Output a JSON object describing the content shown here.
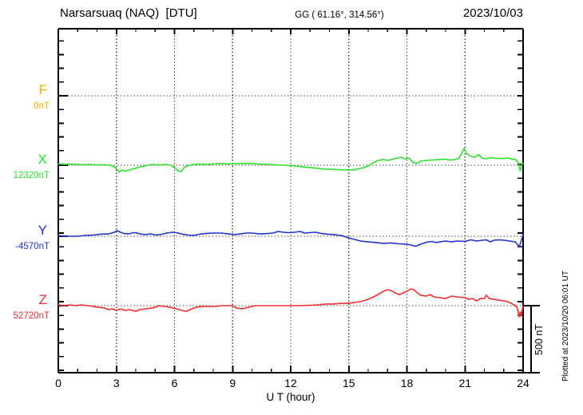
{
  "header": {
    "station": "Narsarsuaq (NAQ)  [DTU]",
    "coordinates": "GG ( 61.16°, 314.56°)",
    "date": "2023/10/03"
  },
  "xaxis": {
    "label": "U T (hour)",
    "tick_labels": [
      "0",
      "3",
      "6",
      "9",
      "12",
      "15",
      "18",
      "21",
      "24"
    ]
  },
  "scalebar": {
    "label": "500 nT",
    "span_nT": 500
  },
  "footer": {
    "plotted_at": "Plotted at 2023/10/20 06:01 UT"
  },
  "chart_data": {
    "type": "line",
    "title": "Narsarsuaq (NAQ) [DTU] magnetogram",
    "date": "2023/10/03",
    "xlabel": "U T (hour)",
    "xlim": [
      0,
      24
    ],
    "xticks": [
      0,
      3,
      6,
      9,
      12,
      15,
      18,
      21,
      24
    ],
    "grid": "dotted vertical line every 3 h; dotted horizontal baseline per channel",
    "y_scale": "100 nT per minor tick, scale bar = 500 nT",
    "legend_position": "left margin channel labels",
    "series": [
      {
        "name": "F",
        "baseline_label": "0nT",
        "baseline_nT": 0,
        "unit": "nT",
        "color": "#ffae00",
        "points": []
      },
      {
        "name": "X",
        "baseline_label": "12320nT",
        "baseline_nT": 12320,
        "unit": "nT",
        "color": "#2ce02c",
        "points": [
          [
            0,
            9
          ],
          [
            0.3,
            6
          ],
          [
            0.6,
            9
          ],
          [
            1,
            6
          ],
          [
            1.3,
            3
          ],
          [
            1.6,
            6
          ],
          [
            2,
            3
          ],
          [
            2.4,
            3
          ],
          [
            2.7,
            0
          ],
          [
            2.9,
            -12
          ],
          [
            3.05,
            -35
          ],
          [
            3.15,
            -52
          ],
          [
            3.3,
            -35
          ],
          [
            3.45,
            -44
          ],
          [
            3.6,
            -38
          ],
          [
            3.8,
            -29
          ],
          [
            4,
            -23
          ],
          [
            4.2,
            -12
          ],
          [
            4.5,
            -6
          ],
          [
            4.7,
            3
          ],
          [
            5,
            6
          ],
          [
            5.2,
            0
          ],
          [
            5.5,
            6
          ],
          [
            5.8,
            0
          ],
          [
            6.05,
            -23
          ],
          [
            6.2,
            -41
          ],
          [
            6.35,
            -47
          ],
          [
            6.5,
            -17
          ],
          [
            6.7,
            -3
          ],
          [
            7,
            6
          ],
          [
            7.3,
            9
          ],
          [
            7.6,
            6
          ],
          [
            8,
            9
          ],
          [
            8.4,
            12
          ],
          [
            8.8,
            9
          ],
          [
            9.2,
            12
          ],
          [
            9.6,
            12
          ],
          [
            10,
            12
          ],
          [
            10.4,
            9
          ],
          [
            10.8,
            6
          ],
          [
            11.2,
            3
          ],
          [
            11.6,
            0
          ],
          [
            12,
            -3
          ],
          [
            12.4,
            -9
          ],
          [
            12.8,
            -15
          ],
          [
            13.2,
            -20
          ],
          [
            13.6,
            -26
          ],
          [
            14,
            -29
          ],
          [
            14.4,
            -32
          ],
          [
            14.7,
            -35
          ],
          [
            15,
            -32
          ],
          [
            15.2,
            -35
          ],
          [
            15.5,
            -26
          ],
          [
            15.8,
            -17
          ],
          [
            16,
            -6
          ],
          [
            16.2,
            12
          ],
          [
            16.5,
            35
          ],
          [
            16.8,
            41
          ],
          [
            17,
            35
          ],
          [
            17.2,
            41
          ],
          [
            17.5,
            52
          ],
          [
            17.7,
            58
          ],
          [
            17.9,
            46
          ],
          [
            18.1,
            52
          ],
          [
            18.3,
            23
          ],
          [
            18.5,
            12
          ],
          [
            18.7,
            29
          ],
          [
            19,
            35
          ],
          [
            19.3,
            38
          ],
          [
            19.6,
            41
          ],
          [
            20,
            44
          ],
          [
            20.2,
            38
          ],
          [
            20.5,
            41
          ],
          [
            20.7,
            52
          ],
          [
            20.85,
            93
          ],
          [
            20.95,
            122
          ],
          [
            21.1,
            81
          ],
          [
            21.3,
            64
          ],
          [
            21.5,
            58
          ],
          [
            21.7,
            76
          ],
          [
            21.9,
            52
          ],
          [
            22.1,
            46
          ],
          [
            22.3,
            55
          ],
          [
            22.5,
            52
          ],
          [
            22.7,
            49
          ],
          [
            23,
            49
          ],
          [
            23.2,
            52
          ],
          [
            23.4,
            46
          ],
          [
            23.6,
            41
          ],
          [
            23.75,
            23
          ],
          [
            23.85,
            -41
          ],
          [
            23.95,
            17
          ],
          [
            24,
            12
          ]
        ]
      },
      {
        "name": "Y",
        "baseline_label": "-4570nT",
        "baseline_nT": -4570,
        "unit": "nT",
        "color": "#2233cc",
        "points": [
          [
            0,
            6
          ],
          [
            0.3,
            0
          ],
          [
            0.7,
            0
          ],
          [
            1,
            0
          ],
          [
            1.4,
            6
          ],
          [
            1.8,
            9
          ],
          [
            2.2,
            15
          ],
          [
            2.6,
            17
          ],
          [
            2.9,
            29
          ],
          [
            3.05,
            41
          ],
          [
            3.2,
            29
          ],
          [
            3.4,
            20
          ],
          [
            3.6,
            17
          ],
          [
            3.8,
            23
          ],
          [
            4,
            26
          ],
          [
            4.2,
            17
          ],
          [
            4.5,
            12
          ],
          [
            4.8,
            17
          ],
          [
            5,
            9
          ],
          [
            5.3,
            12
          ],
          [
            5.6,
            23
          ],
          [
            5.9,
            29
          ],
          [
            6.1,
            26
          ],
          [
            6.4,
            15
          ],
          [
            6.7,
            9
          ],
          [
            7,
            6
          ],
          [
            7.3,
            15
          ],
          [
            7.6,
            20
          ],
          [
            8,
            23
          ],
          [
            8.4,
            23
          ],
          [
            8.8,
            17
          ],
          [
            9.1,
            12
          ],
          [
            9.4,
            17
          ],
          [
            9.7,
            23
          ],
          [
            10,
            23
          ],
          [
            10.4,
            17
          ],
          [
            10.8,
            20
          ],
          [
            11.1,
            23
          ],
          [
            11.35,
            35
          ],
          [
            11.6,
            29
          ],
          [
            11.9,
            26
          ],
          [
            12.2,
            29
          ],
          [
            12.5,
            35
          ],
          [
            12.7,
            23
          ],
          [
            13,
            26
          ],
          [
            13.3,
            29
          ],
          [
            13.6,
            20
          ],
          [
            13.9,
            15
          ],
          [
            14.2,
            12
          ],
          [
            14.6,
            6
          ],
          [
            15,
            -12
          ],
          [
            15.3,
            -23
          ],
          [
            15.6,
            -35
          ],
          [
            16,
            -41
          ],
          [
            16.4,
            -46
          ],
          [
            16.8,
            -52
          ],
          [
            17.2,
            -49
          ],
          [
            17.6,
            -55
          ],
          [
            18,
            -58
          ],
          [
            18.2,
            -64
          ],
          [
            18.45,
            -73
          ],
          [
            18.7,
            -58
          ],
          [
            19,
            -44
          ],
          [
            19.3,
            -38
          ],
          [
            19.5,
            -46
          ],
          [
            19.7,
            -41
          ],
          [
            20,
            -35
          ],
          [
            20.3,
            -41
          ],
          [
            20.6,
            -35
          ],
          [
            21,
            -38
          ],
          [
            21.3,
            -26
          ],
          [
            21.6,
            -35
          ],
          [
            21.9,
            -29
          ],
          [
            22.1,
            -26
          ],
          [
            22.3,
            -41
          ],
          [
            22.5,
            -29
          ],
          [
            22.8,
            -26
          ],
          [
            23,
            -29
          ],
          [
            23.3,
            -35
          ],
          [
            23.6,
            -41
          ],
          [
            23.8,
            -76
          ],
          [
            23.9,
            -35
          ],
          [
            24,
            12
          ]
        ]
      },
      {
        "name": "Z",
        "baseline_label": "52720nT",
        "baseline_nT": 52720,
        "unit": "nT",
        "color": "#ee2e2e",
        "points": [
          [
            0,
            6
          ],
          [
            0.3,
            0
          ],
          [
            0.6,
            6
          ],
          [
            0.9,
            0
          ],
          [
            1.2,
            6
          ],
          [
            1.5,
            0
          ],
          [
            1.8,
            -6
          ],
          [
            2.1,
            -12
          ],
          [
            2.4,
            -17
          ],
          [
            2.6,
            -29
          ],
          [
            2.8,
            -23
          ],
          [
            3,
            -35
          ],
          [
            3.2,
            -23
          ],
          [
            3.45,
            -35
          ],
          [
            3.7,
            -29
          ],
          [
            4,
            -41
          ],
          [
            4.2,
            -29
          ],
          [
            4.5,
            -23
          ],
          [
            4.8,
            -17
          ],
          [
            5,
            -12
          ],
          [
            5.2,
            0
          ],
          [
            5.5,
            -6
          ],
          [
            5.8,
            -12
          ],
          [
            6.1,
            -23
          ],
          [
            6.4,
            -35
          ],
          [
            6.6,
            -41
          ],
          [
            6.8,
            -29
          ],
          [
            7.1,
            -12
          ],
          [
            7.4,
            -6
          ],
          [
            7.7,
            -6
          ],
          [
            8,
            -6
          ],
          [
            8.5,
            0
          ],
          [
            9,
            0
          ],
          [
            9.2,
            -17
          ],
          [
            9.5,
            -23
          ],
          [
            9.8,
            -12
          ],
          [
            10.2,
            0
          ],
          [
            10.6,
            0
          ],
          [
            11,
            0
          ],
          [
            11.5,
            0
          ],
          [
            12,
            0
          ],
          [
            12.5,
            0
          ],
          [
            13,
            3
          ],
          [
            13.4,
            6
          ],
          [
            13.8,
            12
          ],
          [
            14.2,
            12
          ],
          [
            14.6,
            17
          ],
          [
            15,
            17
          ],
          [
            15.3,
            23
          ],
          [
            15.6,
            29
          ],
          [
            15.9,
            41
          ],
          [
            16.2,
            58
          ],
          [
            16.5,
            81
          ],
          [
            16.8,
            105
          ],
          [
            17,
            116
          ],
          [
            17.2,
            110
          ],
          [
            17.4,
            93
          ],
          [
            17.6,
            81
          ],
          [
            17.8,
            93
          ],
          [
            18,
            105
          ],
          [
            18.2,
            122
          ],
          [
            18.35,
            116
          ],
          [
            18.5,
            99
          ],
          [
            18.7,
            76
          ],
          [
            19,
            70
          ],
          [
            19.2,
            81
          ],
          [
            19.4,
            64
          ],
          [
            19.7,
            58
          ],
          [
            20,
            52
          ],
          [
            20.3,
            70
          ],
          [
            20.6,
            64
          ],
          [
            21,
            58
          ],
          [
            21.2,
            46
          ],
          [
            21.4,
            52
          ],
          [
            21.6,
            35
          ],
          [
            21.8,
            52
          ],
          [
            22,
            52
          ],
          [
            22.1,
            76
          ],
          [
            22.25,
            52
          ],
          [
            22.5,
            46
          ],
          [
            22.7,
            41
          ],
          [
            23,
            35
          ],
          [
            23.2,
            29
          ],
          [
            23.4,
            17
          ],
          [
            23.6,
            0
          ],
          [
            23.7,
            -17
          ],
          [
            23.8,
            -81
          ],
          [
            23.85,
            -46
          ],
          [
            23.9,
            -76
          ],
          [
            24,
            0
          ]
        ]
      }
    ]
  }
}
